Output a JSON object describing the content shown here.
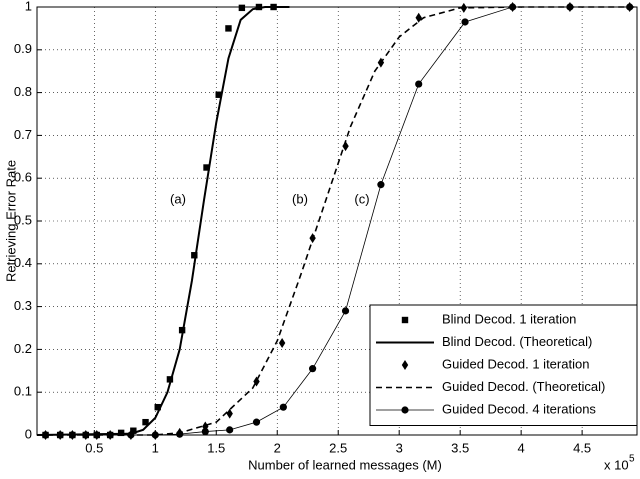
{
  "chart_data": {
    "type": "line",
    "x_label": "Number of learned messages (M)",
    "y_label": "Retrieving Error Rate",
    "exponent_label": {
      "base": "x 10",
      "power": "5"
    },
    "annotations": [
      "(a)",
      "(b)",
      "(c)"
    ],
    "xlim": [
      0.03,
      4.95
    ],
    "ylim": [
      0,
      1
    ],
    "xticks": [
      0.5,
      1,
      1.5,
      2,
      2.5,
      3,
      3.5,
      4,
      4.5
    ],
    "yticks": [
      0,
      0.1,
      0.2,
      0.3,
      0.4,
      0.5,
      0.6,
      0.7,
      0.8,
      0.9,
      1
    ],
    "grid": true,
    "legend": "lower right",
    "series": [
      {
        "name": "Blind Decod. 1 iteration",
        "color": "#000000",
        "marker": "square",
        "linestyle": "none",
        "x": [
          0.1,
          0.22,
          0.32,
          0.43,
          0.52,
          0.63,
          0.72,
          0.82,
          0.92,
          1.02,
          1.12,
          1.22,
          1.32,
          1.42,
          1.52,
          1.6,
          1.71,
          1.85,
          1.97
        ],
        "values": [
          0,
          0,
          0,
          0,
          0,
          0,
          0.005,
          0.01,
          0.03,
          0.065,
          0.13,
          0.245,
          0.42,
          0.625,
          0.795,
          0.95,
          0.998,
          1,
          1
        ]
      },
      {
        "name": "Blind Decod. (Theoretical)",
        "color": "#000000",
        "marker": "none",
        "linestyle": "solid",
        "linewidth": 2,
        "x": [
          0.03,
          0.8,
          0.9,
          1.0,
          1.1,
          1.2,
          1.3,
          1.4,
          1.5,
          1.6,
          1.7,
          1.8,
          1.9,
          2.1
        ],
        "values": [
          0,
          0.003,
          0.012,
          0.04,
          0.1,
          0.2,
          0.36,
          0.55,
          0.73,
          0.88,
          0.97,
          0.995,
          1,
          1
        ]
      },
      {
        "name": "Guided Decod. 1 iteration",
        "color": "#000000",
        "marker": "diamond",
        "linestyle": "none",
        "x": [
          0.1,
          0.22,
          0.32,
          0.43,
          0.52,
          0.63,
          0.8,
          1.0,
          1.2,
          1.41,
          1.61,
          1.83,
          2.04,
          2.29,
          2.56,
          2.85,
          3.16,
          3.53,
          3.93,
          4.4,
          4.89
        ],
        "values": [
          0,
          0,
          0,
          0,
          0,
          0,
          0,
          0,
          0.005,
          0.02,
          0.05,
          0.125,
          0.215,
          0.46,
          0.675,
          0.87,
          0.975,
          0.998,
          1,
          1,
          1
        ]
      },
      {
        "name": "Guided Decod. (Theoretical)",
        "color": "#000000",
        "marker": "none",
        "linestyle": "dashed",
        "linewidth": 1.6,
        "x": [
          0.03,
          1.0,
          1.2,
          1.5,
          1.8,
          2.0,
          2.2,
          2.4,
          2.6,
          2.8,
          3.0,
          3.2,
          3.5,
          4.0,
          4.95
        ],
        "values": [
          0,
          0,
          0.005,
          0.03,
          0.11,
          0.22,
          0.38,
          0.55,
          0.72,
          0.85,
          0.93,
          0.975,
          0.998,
          1,
          1
        ]
      },
      {
        "name": "Guided Decod. 4 iterations",
        "color": "#000000",
        "marker": "circle",
        "linestyle": "solid",
        "linewidth": 0.8,
        "x": [
          0.1,
          0.22,
          0.32,
          0.43,
          0.52,
          0.63,
          0.8,
          1.0,
          1.2,
          1.41,
          1.61,
          1.83,
          2.05,
          2.29,
          2.56,
          2.85,
          3.16,
          3.54,
          3.93,
          4.4,
          4.89
        ],
        "values": [
          0,
          0,
          0,
          0,
          0,
          0,
          0,
          0,
          0.002,
          0.008,
          0.012,
          0.03,
          0.065,
          0.155,
          0.29,
          0.585,
          0.82,
          0.965,
          1,
          1,
          1
        ]
      }
    ]
  }
}
